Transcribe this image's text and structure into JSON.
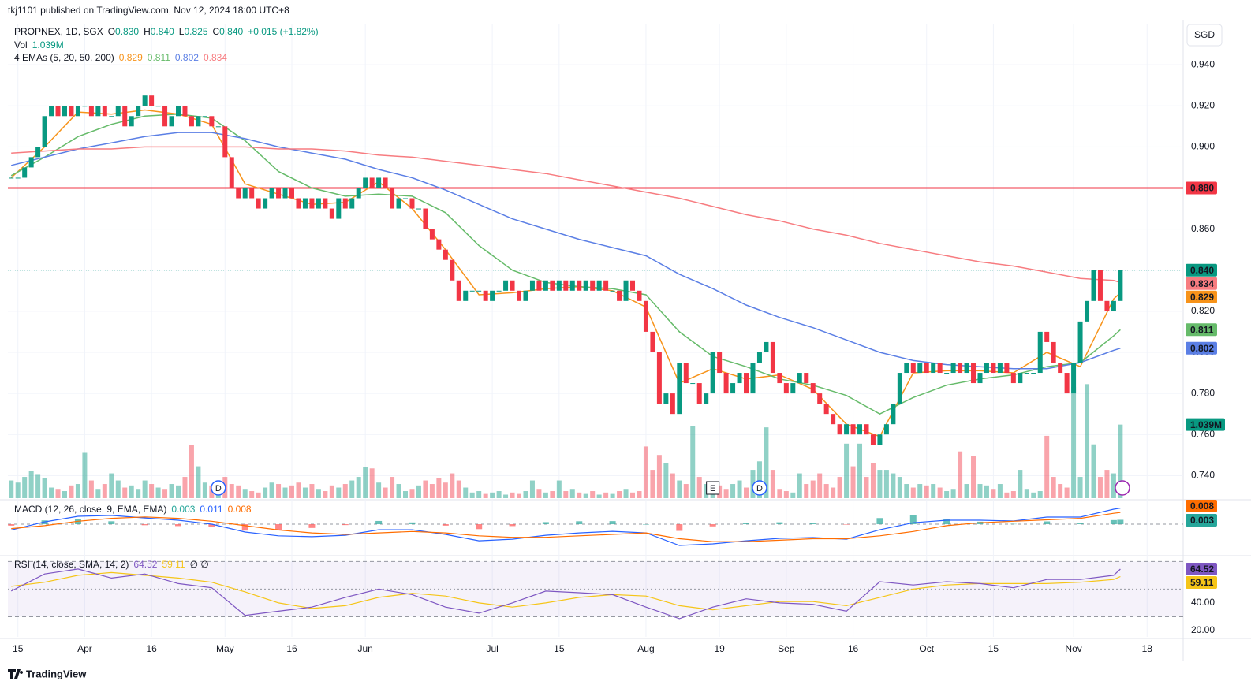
{
  "header": {
    "publisher": "tkj1101 published on TradingView.com, Nov 12, 2024 18:00 UTC+8",
    "currency": "SGD",
    "brand": "TradingView"
  },
  "chart_data": {
    "type": "candlestick",
    "legend": {
      "symbol": "PROPNEX, 1D, SGX",
      "ohlc": [
        {
          "key": "O",
          "value": "0.830"
        },
        {
          "key": "H",
          "value": "0.840"
        },
        {
          "key": "L",
          "value": "0.825"
        },
        {
          "key": "C",
          "value": "0.840"
        }
      ],
      "change": "+0.015 (+1.82%)",
      "volume_title": "Vol",
      "volume_value": "1.039M",
      "ema_title": "4 EMAs (5, 20, 50, 200)"
    },
    "up_color": "#089981",
    "down_color": "#f23645",
    "closes": [
      0.885,
      0.885,
      0.89,
      0.895,
      0.9,
      0.915,
      0.92,
      0.915,
      0.92,
      0.915,
      0.92,
      0.92,
      0.915,
      0.92,
      0.915,
      0.915,
      0.92,
      0.91,
      0.915,
      0.92,
      0.925,
      0.92,
      0.92,
      0.91,
      0.915,
      0.92,
      0.915,
      0.91,
      0.915,
      0.915,
      0.91,
      0.91,
      0.895,
      0.88,
      0.875,
      0.88,
      0.875,
      0.87,
      0.875,
      0.88,
      0.875,
      0.88,
      0.875,
      0.87,
      0.875,
      0.87,
      0.875,
      0.87,
      0.865,
      0.875,
      0.87,
      0.875,
      0.88,
      0.885,
      0.88,
      0.885,
      0.88,
      0.87,
      0.875,
      0.875,
      0.87,
      0.87,
      0.86,
      0.855,
      0.85,
      0.845,
      0.835,
      0.825,
      0.83,
      0.83,
      0.83,
      0.825,
      0.83,
      0.83,
      0.835,
      0.83,
      0.825,
      0.83,
      0.835,
      0.83,
      0.835,
      0.83,
      0.835,
      0.83,
      0.835,
      0.83,
      0.835,
      0.83,
      0.835,
      0.83,
      0.83,
      0.825,
      0.835,
      0.83,
      0.825,
      0.81,
      0.8,
      0.775,
      0.78,
      0.77,
      0.795,
      0.785,
      0.785,
      0.775,
      0.78,
      0.8,
      0.79,
      0.78,
      0.785,
      0.79,
      0.78,
      0.795,
      0.8,
      0.805,
      0.79,
      0.785,
      0.78,
      0.785,
      0.79,
      0.785,
      0.78,
      0.775,
      0.77,
      0.765,
      0.76,
      0.765,
      0.76,
      0.765,
      0.76,
      0.755,
      0.76,
      0.765,
      0.775,
      0.79,
      0.795,
      0.79,
      0.795,
      0.79,
      0.795,
      0.79,
      0.79,
      0.795,
      0.79,
      0.795,
      0.785,
      0.79,
      0.795,
      0.79,
      0.795,
      0.79,
      0.785,
      0.79,
      0.79,
      0.79,
      0.81,
      0.805,
      0.795,
      0.79,
      0.78,
      0.795,
      0.815,
      0.825,
      0.84,
      0.825,
      0.82,
      0.825,
      0.84
    ],
    "ylim": [
      0.729,
      0.96
    ],
    "yticks": [
      {
        "value": 0.74,
        "label": "0.740"
      },
      {
        "value": 0.76,
        "label": "0.760"
      },
      {
        "value": 0.78,
        "label": "0.780"
      },
      {
        "value": 0.8,
        "label": "0.800"
      },
      {
        "value": 0.82,
        "label": "0.820"
      },
      {
        "value": 0.84,
        "label": "0.840"
      },
      {
        "value": 0.86,
        "label": "0.860"
      },
      {
        "value": 0.88,
        "label": "0.880"
      },
      {
        "value": 0.9,
        "label": "0.900"
      },
      {
        "value": 0.92,
        "label": "0.920"
      },
      {
        "value": 0.94,
        "label": "0.940"
      }
    ],
    "xlim": [
      -0.5,
      175.4
    ],
    "xticks": [
      {
        "value": 1,
        "label": "15"
      },
      {
        "value": 11,
        "label": "Apr"
      },
      {
        "value": 21,
        "label": "16"
      },
      {
        "value": 32,
        "label": "May"
      },
      {
        "value": 42,
        "label": "16"
      },
      {
        "value": 53,
        "label": "Jun"
      },
      {
        "value": 72,
        "label": "Jul"
      },
      {
        "value": 82,
        "label": "15"
      },
      {
        "value": 95,
        "label": "Aug"
      },
      {
        "value": 106,
        "label": "19"
      },
      {
        "value": 116,
        "label": "Sep"
      },
      {
        "value": 126,
        "label": "16"
      },
      {
        "value": 137,
        "label": "Oct"
      },
      {
        "value": 147,
        "label": "15"
      },
      {
        "value": 159,
        "label": "Nov"
      },
      {
        "value": 170,
        "label": "18"
      }
    ],
    "grid": true,
    "price_line": {
      "value": 0.84,
      "label": "0.840",
      "color": "#089981"
    },
    "hline": {
      "value": 0.88,
      "label": "0.880",
      "color": "#f23645"
    },
    "ema_x": [
      0,
      5,
      10,
      15,
      20,
      25,
      30,
      35,
      40,
      45,
      50,
      55,
      60,
      65,
      70,
      75,
      80,
      85,
      90,
      95,
      100,
      105,
      110,
      115,
      120,
      125,
      130,
      135,
      140,
      145,
      150,
      155,
      160,
      165,
      166
    ],
    "emas": [
      {
        "color": "#f7931a",
        "values": [
          0.885,
          0.9,
          0.917,
          0.916,
          0.918,
          0.916,
          0.911,
          0.882,
          0.877,
          0.872,
          0.873,
          0.883,
          0.87,
          0.85,
          0.828,
          0.829,
          0.831,
          0.832,
          0.83,
          0.822,
          0.785,
          0.792,
          0.787,
          0.789,
          0.782,
          0.765,
          0.759,
          0.79,
          0.791,
          0.791,
          0.79,
          0.8,
          0.793,
          0.826,
          0.829
        ]
      },
      {
        "color": "#66bb6a",
        "values": [
          0.886,
          0.895,
          0.905,
          0.911,
          0.915,
          0.916,
          0.914,
          0.903,
          0.888,
          0.88,
          0.876,
          0.877,
          0.876,
          0.868,
          0.852,
          0.84,
          0.834,
          0.832,
          0.831,
          0.828,
          0.81,
          0.798,
          0.793,
          0.787,
          0.784,
          0.779,
          0.77,
          0.778,
          0.784,
          0.787,
          0.789,
          0.793,
          0.795,
          0.808,
          0.811
        ]
      },
      {
        "color": "#5b7fe5",
        "values": [
          0.891,
          0.895,
          0.899,
          0.902,
          0.905,
          0.907,
          0.907,
          0.904,
          0.9,
          0.897,
          0.894,
          0.889,
          0.885,
          0.879,
          0.872,
          0.865,
          0.86,
          0.855,
          0.851,
          0.847,
          0.838,
          0.831,
          0.823,
          0.817,
          0.812,
          0.806,
          0.8,
          0.796,
          0.794,
          0.793,
          0.792,
          0.792,
          0.795,
          0.801,
          0.802
        ]
      },
      {
        "color": "#f77c80",
        "values": [
          0.897,
          0.898,
          0.899,
          0.899,
          0.9,
          0.9,
          0.9,
          0.9,
          0.899,
          0.899,
          0.898,
          0.896,
          0.895,
          0.893,
          0.891,
          0.889,
          0.887,
          0.884,
          0.881,
          0.878,
          0.875,
          0.871,
          0.867,
          0.864,
          0.86,
          0.857,
          0.853,
          0.85,
          0.847,
          0.844,
          0.842,
          0.839,
          0.836,
          0.835,
          0.834
        ]
      }
    ],
    "events": [
      {
        "index": 31,
        "label": "D"
      },
      {
        "index": 105,
        "label": "E"
      },
      {
        "index": 112,
        "label": "D"
      }
    ],
    "volume": {
      "ylim": [
        0,
        6.7
      ],
      "values": [
        0.25,
        0.22,
        0.3,
        0.38,
        0.34,
        0.28,
        0.15,
        0.12,
        0.1,
        0.18,
        0.2,
        0.64,
        0.25,
        0.12,
        0.2,
        0.35,
        0.25,
        0.15,
        0.18,
        0.12,
        0.25,
        0.2,
        0.15,
        0.12,
        0.2,
        0.18,
        0.3,
        0.75,
        0.45,
        0.22,
        0.18,
        0.15,
        0.3,
        0.2,
        0.18,
        0.12,
        0.1,
        0.08,
        0.15,
        0.22,
        0.2,
        0.15,
        0.18,
        0.22,
        0.15,
        0.2,
        0.12,
        0.1,
        0.18,
        0.15,
        0.2,
        0.25,
        0.3,
        0.44,
        0.42,
        0.22,
        0.15,
        0.3,
        0.2,
        0.1,
        0.12,
        0.18,
        0.25,
        0.2,
        0.28,
        0.22,
        0.35,
        0.25,
        0.15,
        0.08,
        0.1,
        0.06,
        0.08,
        0.1,
        0.05,
        0.08,
        0.06,
        0.1,
        0.25,
        0.12,
        0.08,
        0.1,
        0.25,
        0.1,
        0.12,
        0.08,
        0.06,
        0.1,
        0.05,
        0.08,
        0.06,
        0.1,
        0.12,
        0.08,
        0.1,
        0.73,
        0.4,
        0.61,
        0.5,
        0.35,
        0.25,
        0.2,
        1.02,
        0.3,
        0.2,
        0.15,
        0.18,
        0.12,
        0.2,
        0.25,
        0.15,
        0.4,
        0.52,
        1.0,
        0.4,
        0.12,
        0.1,
        0.08,
        0.35,
        0.2,
        0.25,
        0.35,
        0.2,
        0.15,
        0.3,
        0.77,
        0.45,
        0.77,
        0.3,
        0.5,
        0.4,
        0.4,
        0.35,
        0.3,
        0.2,
        0.15,
        0.2,
        0.18,
        0.2,
        0.15,
        0.1,
        0.12,
        0.66,
        0.2,
        0.6,
        0.2,
        0.18,
        0.12,
        0.2,
        0.08,
        0.1,
        0.4,
        0.12,
        0.08,
        0.1,
        0.88,
        0.3,
        0.2,
        0.15,
        1.57,
        0.3,
        1.61,
        0.76,
        0.3,
        0.4,
        0.35,
        1.039
      ]
    },
    "macd": {
      "title": "MACD (12, 26, close, 9, EMA, EMA)",
      "ylim": [
        -0.02,
        0.0157
      ],
      "histogram": {
        "up_color": "#26a69a",
        "down_color": "#ff5252",
        "values": [
          -0.001,
          0.0026,
          0.0034,
          0.002,
          -0.0007,
          -0.0013,
          -0.002,
          -0.0044,
          -0.004,
          -0.0026,
          -0.0006,
          0.0022,
          0.0012,
          -0.001,
          -0.0034,
          -0.0013,
          0.0014,
          0.002,
          0.0021,
          0,
          -0.0046,
          -0.0015,
          0.0006,
          0.0013,
          0.0008,
          -0.0003,
          0.0042,
          0.006,
          0.0037,
          0.0017,
          0.0002,
          0.0019,
          0.0009,
          0.0028,
          0.003
        ]
      },
      "macd": {
        "color": "#2962ff",
        "values": [
          -0.004,
          0.0016,
          0.0054,
          0.006,
          0.0043,
          0.0027,
          0,
          -0.0054,
          -0.008,
          -0.0086,
          -0.0076,
          -0.0038,
          -0.0038,
          -0.007,
          -0.0114,
          -0.0103,
          -0.0076,
          -0.006,
          -0.0049,
          -0.006,
          -0.0146,
          -0.0135,
          -0.0114,
          -0.0097,
          -0.0092,
          -0.0103,
          -0.0038,
          0.001,
          0.0027,
          0.0027,
          0.0022,
          0.0049,
          0.0049,
          0.0103,
          0.011
        ]
      },
      "signal": {
        "color": "#ff6d00",
        "values": [
          -0.003,
          -0.001,
          0.002,
          0.004,
          0.005,
          0.004,
          0.002,
          -0.001,
          -0.004,
          -0.006,
          -0.007,
          -0.006,
          -0.005,
          -0.006,
          -0.008,
          -0.009,
          -0.009,
          -0.008,
          -0.007,
          -0.006,
          -0.01,
          -0.012,
          -0.012,
          -0.011,
          -0.01,
          -0.01,
          -0.008,
          -0.005,
          -0.001,
          0.001,
          0.002,
          0.003,
          0.004,
          0.0075,
          0.008
        ]
      }
    },
    "rsi": {
      "title": "RSI (14, close, SMA, 14, 2)",
      "flags": "∅ ∅",
      "ylim": [
        15.4,
        73.1
      ],
      "yticks": [
        {
          "value": 20,
          "label": "20.00"
        },
        {
          "value": 40,
          "label": "40.00"
        }
      ],
      "bands": [
        30,
        50,
        70
      ],
      "rsi": {
        "color": "#7e57c2",
        "values": [
          48.6,
          61,
          64.6,
          58,
          61,
          54,
          51,
          31,
          34,
          37,
          44,
          50,
          46,
          37,
          32.6,
          40,
          48.6,
          47.4,
          46,
          37,
          28.6,
          37,
          43,
          40,
          39,
          34,
          55.4,
          53,
          55.4,
          54,
          51,
          57,
          57,
          60,
          64.52
        ]
      },
      "ma": {
        "color": "#f5c518",
        "values": [
          52,
          55,
          60,
          62,
          60,
          58,
          55,
          48,
          40,
          36,
          38,
          44,
          47,
          45,
          40,
          37,
          40,
          44,
          46,
          45,
          38,
          35,
          38,
          41,
          41,
          38,
          44,
          50,
          53,
          54,
          54,
          54,
          55,
          57,
          59.11
        ]
      }
    }
  }
}
